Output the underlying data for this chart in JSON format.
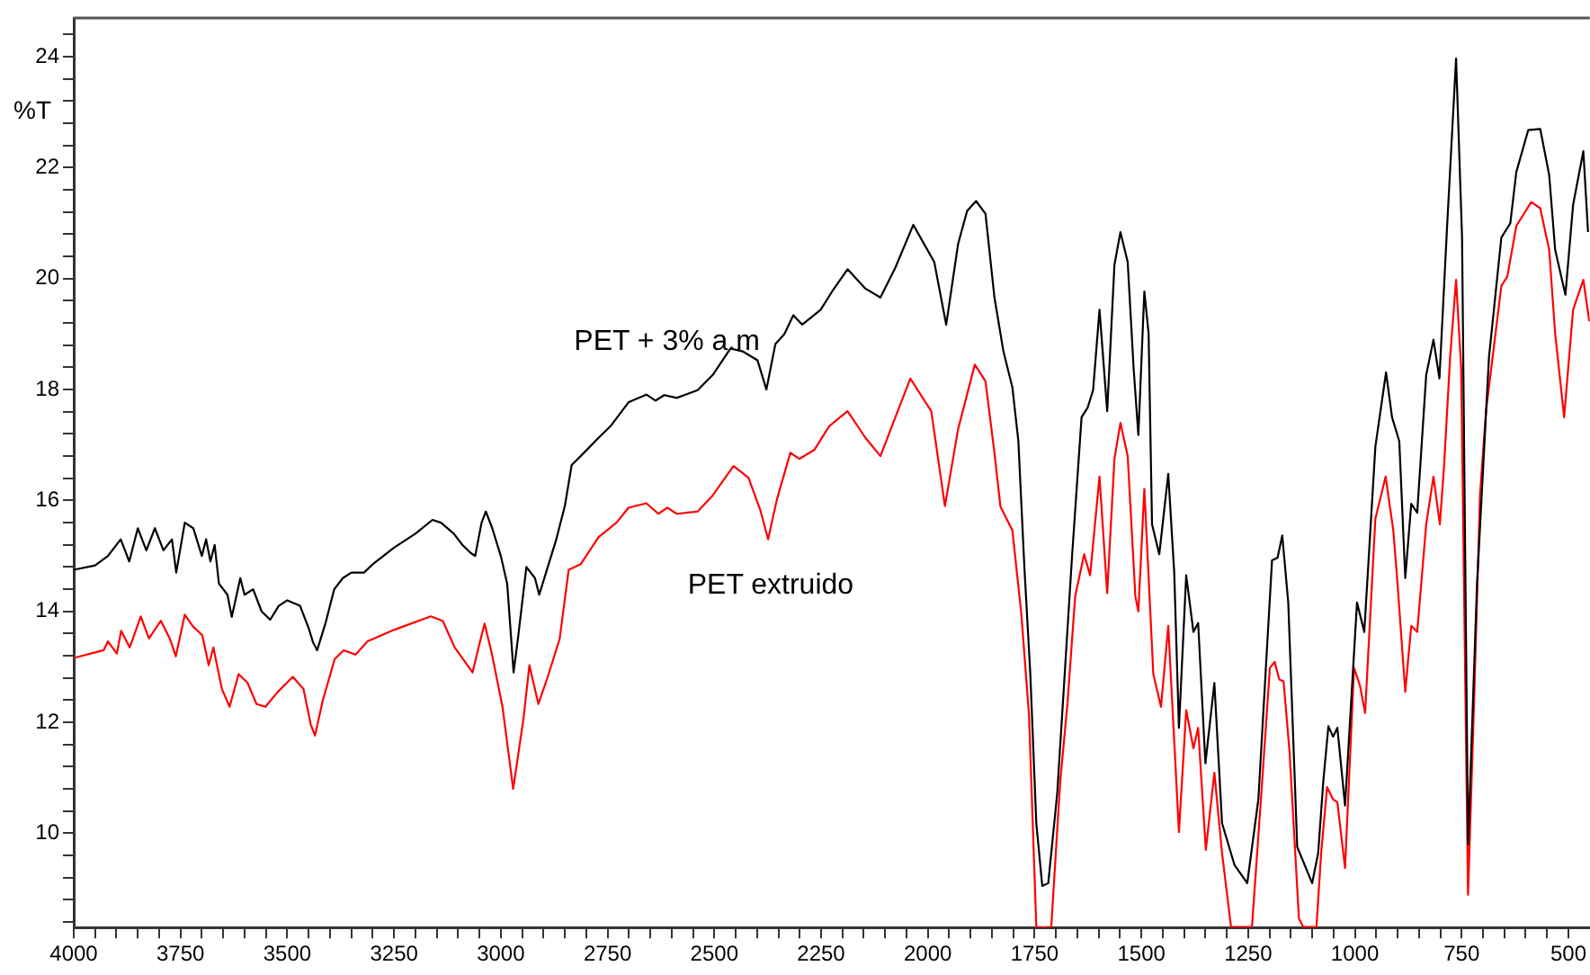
{
  "chart_data": {
    "type": "line",
    "ylabel": "%T",
    "xlim": [
      4000,
      450
    ],
    "ylim": [
      8.3,
      24.7
    ],
    "xticks": [
      4000,
      {
        "value": 3950,
        "label": null
      },
      {
        "value": 3900,
        "label": null
      },
      {
        "value": 3850,
        "label": null
      },
      {
        "value": 3800,
        "label": null
      },
      3750,
      {
        "value": 3700,
        "label": null
      },
      {
        "value": 3650,
        "label": null
      },
      {
        "value": 3600,
        "label": null
      },
      {
        "value": 3550,
        "label": null
      },
      3500,
      {
        "value": 3450,
        "label": null
      },
      {
        "value": 3400,
        "label": null
      },
      {
        "value": 3350,
        "label": null
      },
      {
        "value": 3300,
        "label": null
      },
      3250,
      {
        "value": 3200,
        "label": null
      },
      {
        "value": 3150,
        "label": null
      },
      {
        "value": 3100,
        "label": null
      },
      {
        "value": 3050,
        "label": null
      },
      3000,
      {
        "value": 2950,
        "label": null
      },
      {
        "value": 2900,
        "label": null
      },
      {
        "value": 2850,
        "label": null
      },
      {
        "value": 2800,
        "label": null
      },
      2750,
      {
        "value": 2700,
        "label": null
      },
      {
        "value": 2650,
        "label": null
      },
      {
        "value": 2600,
        "label": null
      },
      {
        "value": 2550,
        "label": null
      },
      2500,
      {
        "value": 2450,
        "label": null
      },
      {
        "value": 2400,
        "label": null
      },
      {
        "value": 2350,
        "label": null
      },
      {
        "value": 2300,
        "label": null
      },
      2250,
      {
        "value": 2200,
        "label": null
      },
      {
        "value": 2150,
        "label": null
      },
      {
        "value": 2100,
        "label": null
      },
      {
        "value": 2050,
        "label": null
      },
      2000,
      {
        "value": 1950,
        "label": null
      },
      {
        "value": 1900,
        "label": null
      },
      {
        "value": 1850,
        "label": null
      },
      {
        "value": 1800,
        "label": null
      },
      1750,
      {
        "value": 1700,
        "label": null
      },
      {
        "value": 1650,
        "label": null
      },
      {
        "value": 1600,
        "label": null
      },
      {
        "value": 1550,
        "label": null
      },
      1500,
      {
        "value": 1450,
        "label": null
      },
      {
        "value": 1400,
        "label": null
      },
      {
        "value": 1350,
        "label": null
      },
      {
        "value": 1300,
        "label": null
      },
      1250,
      {
        "value": 1200,
        "label": null
      },
      {
        "value": 1150,
        "label": null
      },
      {
        "value": 1100,
        "label": null
      },
      {
        "value": 1050,
        "label": null
      },
      1000,
      {
        "value": 950,
        "label": null
      },
      {
        "value": 900,
        "label": null
      },
      {
        "value": 850,
        "label": null
      },
      {
        "value": 800,
        "label": null
      },
      750,
      {
        "value": 700,
        "label": null
      },
      {
        "value": 650,
        "label": null
      },
      {
        "value": 600,
        "label": null
      },
      {
        "value": 550,
        "label": null
      },
      500
    ],
    "yticks": [
      {
        "value": 8.4,
        "label": null
      },
      {
        "value": 8.8,
        "label": null
      },
      {
        "value": 9.2,
        "label": null
      },
      {
        "value": 9.6,
        "label": null
      },
      10,
      {
        "value": 10.4,
        "label": null
      },
      {
        "value": 10.8,
        "label": null
      },
      {
        "value": 11.2,
        "label": null
      },
      {
        "value": 11.6,
        "label": null
      },
      12,
      {
        "value": 12.4,
        "label": null
      },
      {
        "value": 12.8,
        "label": null
      },
      {
        "value": 13.2,
        "label": null
      },
      {
        "value": 13.6,
        "label": null
      },
      14,
      {
        "value": 14.4,
        "label": null
      },
      {
        "value": 14.8,
        "label": null
      },
      {
        "value": 15.2,
        "label": null
      },
      {
        "value": 15.6,
        "label": null
      },
      16,
      {
        "value": 16.4,
        "label": null
      },
      {
        "value": 16.8,
        "label": null
      },
      {
        "value": 17.2,
        "label": null
      },
      {
        "value": 17.6,
        "label": null
      },
      18,
      {
        "value": 18.4,
        "label": null
      },
      {
        "value": 18.8,
        "label": null
      },
      {
        "value": 19.2,
        "label": null
      },
      {
        "value": 19.6,
        "label": null
      },
      20,
      {
        "value": 20.4,
        "label": null
      },
      {
        "value": 20.8,
        "label": null
      },
      {
        "value": 21.2,
        "label": null
      },
      {
        "value": 21.6,
        "label": null
      },
      22,
      {
        "value": 22.4,
        "label": null
      },
      {
        "value": 22.8,
        "label": null
      },
      {
        "value": 23.2,
        "label": null
      },
      {
        "value": 23.6,
        "label": null
      },
      24,
      {
        "value": 24.4,
        "label": null
      }
    ],
    "grid": false,
    "marker": "none",
    "line_style": "solid",
    "series": [
      {
        "name": "PET + 3% a.m",
        "color": "#000000",
        "x": [
          4000,
          3950,
          3920,
          3890,
          3870,
          3850,
          3830,
          3810,
          3790,
          3770,
          3760,
          3740,
          3720,
          3700,
          3690,
          3680,
          3670,
          3660,
          3640,
          3630,
          3610,
          3600,
          3580,
          3560,
          3540,
          3520,
          3500,
          3470,
          3450,
          3440,
          3430,
          3410,
          3390,
          3370,
          3350,
          3320,
          3300,
          3250,
          3200,
          3160,
          3140,
          3110,
          3090,
          3070,
          3060,
          3045,
          3035,
          3020,
          3000,
          2985,
          2970,
          2960,
          2940,
          2920,
          2910,
          2890,
          2870,
          2850,
          2834,
          2813,
          2771,
          2743,
          2701,
          2659,
          2638,
          2617,
          2588,
          2539,
          2504,
          2462,
          2434,
          2399,
          2378,
          2357,
          2336,
          2315,
          2294,
          2251,
          2224,
          2188,
          2146,
          2111,
          2076,
          2034,
          1985,
          1957,
          1929,
          1908,
          1887,
          1865,
          1844,
          1823,
          1802,
          1788,
          1774,
          1760,
          1746,
          1732,
          1718,
          1697,
          1683,
          1662,
          1640,
          1626,
          1613,
          1598,
          1580,
          1563,
          1549,
          1532,
          1518,
          1507,
          1493,
          1483,
          1475,
          1458,
          1437,
          1423,
          1412,
          1395,
          1378,
          1367,
          1350,
          1329,
          1311,
          1282,
          1252,
          1226,
          1194,
          1181,
          1170,
          1156,
          1135,
          1100,
          1086,
          1074,
          1062,
          1051,
          1041,
          1023,
          995,
          978,
          952,
          927,
          913,
          896,
          882,
          868,
          854,
          833,
          816,
          802,
          784,
          763,
          749,
          735,
          714,
          686,
          657,
          636,
          622,
          594,
          566,
          545,
          531,
          507,
          489,
          465,
          454
        ],
        "values": [
          14.75,
          14.83,
          15.0,
          15.3,
          14.9,
          15.5,
          15.1,
          15.5,
          15.1,
          15.3,
          14.7,
          15.6,
          15.5,
          15.0,
          15.3,
          14.9,
          15.2,
          14.5,
          14.3,
          13.9,
          14.6,
          14.3,
          14.4,
          14.0,
          13.85,
          14.1,
          14.2,
          14.1,
          13.7,
          13.45,
          13.3,
          13.8,
          14.4,
          14.6,
          14.7,
          14.7,
          14.85,
          15.15,
          15.4,
          15.65,
          15.6,
          15.4,
          15.2,
          15.05,
          15.0,
          15.6,
          15.8,
          15.5,
          15.0,
          14.5,
          12.9,
          13.5,
          14.8,
          14.6,
          14.3,
          14.8,
          15.3,
          15.9,
          16.64,
          16.8,
          17.13,
          17.34,
          17.77,
          17.91,
          17.8,
          17.9,
          17.85,
          17.99,
          18.26,
          18.74,
          18.69,
          18.53,
          18.0,
          18.82,
          19.0,
          19.34,
          19.17,
          19.44,
          19.77,
          20.17,
          19.82,
          19.66,
          20.2,
          20.97,
          20.3,
          19.17,
          20.63,
          21.22,
          21.4,
          21.17,
          19.66,
          18.69,
          18.04,
          17.07,
          14.81,
          12.87,
          10.18,
          9.05,
          9.1,
          10.72,
          12.44,
          15.03,
          17.5,
          17.67,
          17.99,
          19.44,
          17.61,
          20.25,
          20.84,
          20.3,
          18.37,
          17.18,
          19.77,
          19.01,
          15.57,
          15.03,
          16.48,
          14.7,
          11.9,
          14.65,
          13.63,
          13.79,
          11.26,
          12.71,
          10.18,
          9.43,
          9.1,
          10.61,
          14.92,
          14.97,
          15.37,
          14.16,
          9.75,
          9.1,
          9.64,
          10.93,
          11.93,
          11.74,
          11.9,
          10.5,
          14.16,
          13.63,
          16.97,
          18.31,
          17.5,
          17.07,
          14.6,
          15.94,
          15.78,
          18.26,
          18.9,
          18.2,
          20.95,
          23.97,
          20.74,
          9.8,
          14.49,
          18.58,
          20.74,
          21.0,
          21.92,
          22.68,
          22.7,
          21.87,
          20.52,
          19.71,
          21.33,
          22.3,
          20.84
        ]
      },
      {
        "name": "PET extruido",
        "color": "#ff0000",
        "x": [
          4000,
          3930,
          3920,
          3899,
          3889,
          3869,
          3843,
          3824,
          3796,
          3775,
          3761,
          3740,
          3721,
          3699,
          3684,
          3673,
          3653,
          3635,
          3614,
          3593,
          3572,
          3551,
          3522,
          3487,
          3462,
          3445,
          3435,
          3417,
          3389,
          3368,
          3340,
          3312,
          3249,
          3164,
          3136,
          3108,
          3066,
          3052,
          3038,
          3021,
          2996,
          2971,
          2947,
          2933,
          2912,
          2890,
          2862,
          2841,
          2813,
          2771,
          2729,
          2701,
          2659,
          2631,
          2610,
          2588,
          2539,
          2504,
          2455,
          2420,
          2392,
          2374,
          2353,
          2322,
          2301,
          2266,
          2231,
          2188,
          2146,
          2111,
          2076,
          2041,
          1992,
          1960,
          1929,
          1890,
          1865,
          1844,
          1830,
          1802,
          1781,
          1763,
          1746,
          1730,
          1711,
          1690,
          1673,
          1655,
          1634,
          1620,
          1598,
          1580,
          1563,
          1549,
          1532,
          1514,
          1507,
          1493,
          1472,
          1454,
          1437,
          1412,
          1395,
          1378,
          1367,
          1349,
          1329,
          1311,
          1290,
          1241,
          1220,
          1199,
          1188,
          1177,
          1167,
          1153,
          1131,
          1121,
          1090,
          1079,
          1065,
          1051,
          1041,
          1023,
          1002,
          988,
          976,
          952,
          928,
          910,
          900,
          882,
          868,
          854,
          833,
          816,
          801,
          791,
          777,
          763,
          751,
          735,
          721,
          707,
          693,
          657,
          643,
          622,
          587,
          566,
          545,
          531,
          510,
          489,
          465,
          451
        ],
        "values": [
          13.16,
          13.3,
          13.46,
          13.24,
          13.65,
          13.35,
          13.91,
          13.51,
          13.83,
          13.51,
          13.19,
          13.94,
          13.73,
          13.57,
          13.03,
          13.35,
          12.6,
          12.28,
          12.87,
          12.71,
          12.33,
          12.28,
          12.55,
          12.82,
          12.6,
          11.96,
          11.76,
          12.39,
          13.14,
          13.3,
          13.22,
          13.46,
          13.67,
          13.91,
          13.83,
          13.35,
          12.9,
          13.35,
          13.78,
          13.24,
          12.28,
          10.8,
          12.06,
          13.03,
          12.33,
          12.82,
          13.51,
          14.75,
          14.85,
          15.34,
          15.6,
          15.87,
          15.95,
          15.76,
          15.87,
          15.76,
          15.8,
          16.09,
          16.62,
          16.41,
          15.82,
          15.3,
          16.03,
          16.86,
          16.75,
          16.91,
          17.34,
          17.61,
          17.13,
          16.8,
          17.5,
          18.2,
          17.61,
          15.9,
          17.29,
          18.45,
          18.15,
          16.86,
          15.89,
          15.46,
          13.95,
          12.12,
          8.31,
          8.3,
          8.31,
          10.93,
          12.34,
          14.27,
          15.03,
          14.65,
          16.43,
          14.33,
          16.75,
          17.4,
          16.8,
          14.27,
          14.0,
          16.21,
          12.87,
          12.28,
          13.74,
          10.02,
          12.22,
          11.53,
          11.9,
          9.7,
          11.09,
          9.64,
          8.31,
          8.31,
          10.61,
          12.98,
          13.09,
          12.77,
          12.74,
          11.47,
          8.46,
          8.31,
          8.31,
          9.64,
          10.83,
          10.61,
          10.56,
          9.37,
          12.98,
          12.66,
          12.17,
          15.67,
          16.43,
          15.46,
          14.49,
          12.55,
          13.74,
          13.63,
          15.57,
          16.43,
          15.57,
          16.64,
          18.58,
          19.98,
          18.37,
          8.89,
          12.34,
          16.1,
          17.61,
          19.87,
          20.04,
          20.95,
          21.38,
          21.27,
          20.52,
          19.01,
          17.5,
          19.44,
          19.98,
          19.23
        ]
      }
    ]
  }
}
